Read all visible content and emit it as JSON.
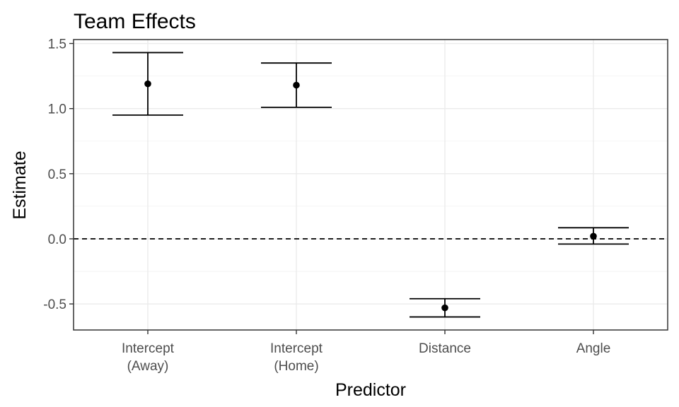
{
  "chart_data": {
    "type": "errorbar",
    "title": "Team Effects",
    "xlabel": "Predictor",
    "ylabel": "Estimate",
    "categories": [
      [
        "Intercept",
        "(Away)"
      ],
      [
        "Intercept",
        "(Home)"
      ],
      [
        "Distance"
      ],
      [
        "Angle"
      ]
    ],
    "estimates": [
      1.19,
      1.18,
      -0.53,
      0.02
    ],
    "lower": [
      0.95,
      1.01,
      -0.6,
      -0.04
    ],
    "upper": [
      1.43,
      1.35,
      -0.46,
      0.085
    ],
    "ylim": [
      -0.7,
      1.53
    ],
    "yticks": [
      -0.5,
      0.0,
      0.5,
      1.0,
      1.5
    ],
    "ytick_labels": [
      "-0.5",
      "0.0",
      "0.5",
      "1.0",
      "1.5"
    ],
    "reference_line": {
      "y": 0,
      "style": "dashed"
    },
    "grid": true,
    "colors": {
      "marks": "#000000",
      "grid": "#ebebeb",
      "panel_border": "#333333",
      "tick_text": "#4d4d4d"
    }
  }
}
